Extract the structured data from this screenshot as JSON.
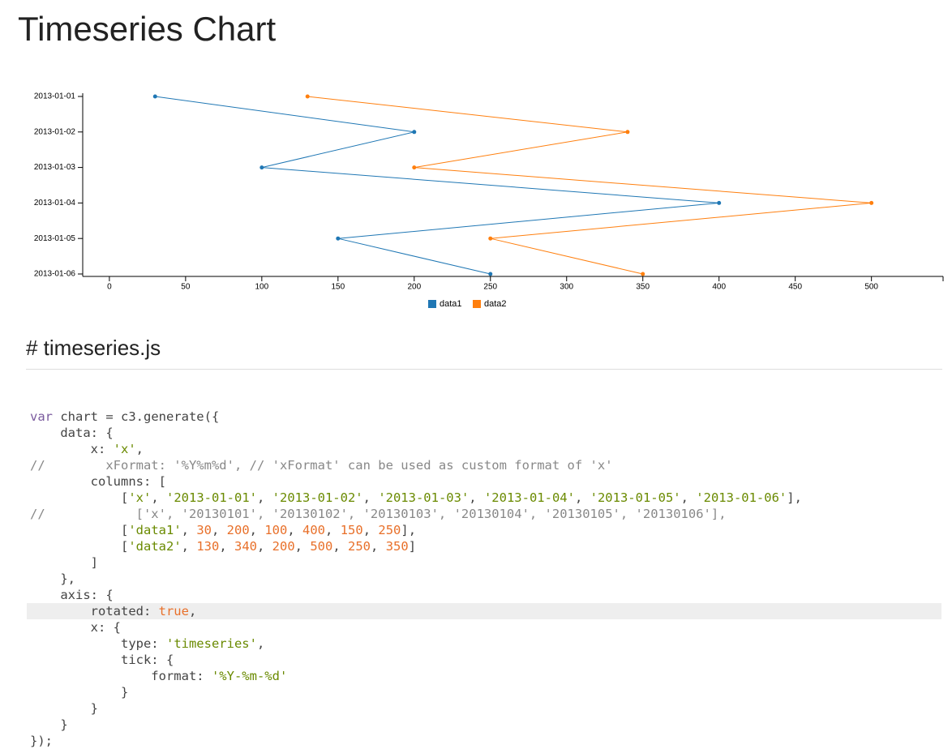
{
  "header": {
    "title": "Timeseries Chart"
  },
  "chart_data": {
    "type": "line",
    "rotated": true,
    "x": [
      "2013-01-01",
      "2013-01-02",
      "2013-01-03",
      "2013-01-04",
      "2013-01-05",
      "2013-01-06"
    ],
    "series": [
      {
        "name": "data1",
        "color": "#1f77b4",
        "values": [
          30,
          200,
          100,
          400,
          150,
          250
        ]
      },
      {
        "name": "data2",
        "color": "#ff7f0e",
        "values": [
          130,
          340,
          200,
          500,
          250,
          350
        ]
      }
    ],
    "ylim": [
      -17.5,
      547
    ],
    "yticks": [
      0,
      50,
      100,
      150,
      200,
      250,
      300,
      350,
      400,
      450,
      500
    ],
    "grid": false,
    "legend": "bottom"
  },
  "code": {
    "title": "# timeseries.js",
    "lines": [
      "var chart = c3.generate({",
      "    data: {",
      "        x: 'x',",
      "//        xFormat: '%Y%m%d', // 'xFormat' can be used as custom format of 'x'",
      "        columns: [",
      "            ['x', '2013-01-01', '2013-01-02', '2013-01-03', '2013-01-04', '2013-01-05', '2013-01-06'],",
      "//            ['x', '20130101', '20130102', '20130103', '20130104', '20130105', '20130106'],",
      "            ['data1', 30, 200, 100, 400, 150, 250],",
      "            ['data2', 130, 340, 200, 500, 250, 350]",
      "        ]",
      "    },",
      "    axis: {",
      "        rotated: true,",
      "        x: {",
      "            type: 'timeseries',",
      "            tick: {",
      "                format: '%Y-%m-%d'",
      "            }",
      "        }",
      "    }",
      "});"
    ]
  }
}
